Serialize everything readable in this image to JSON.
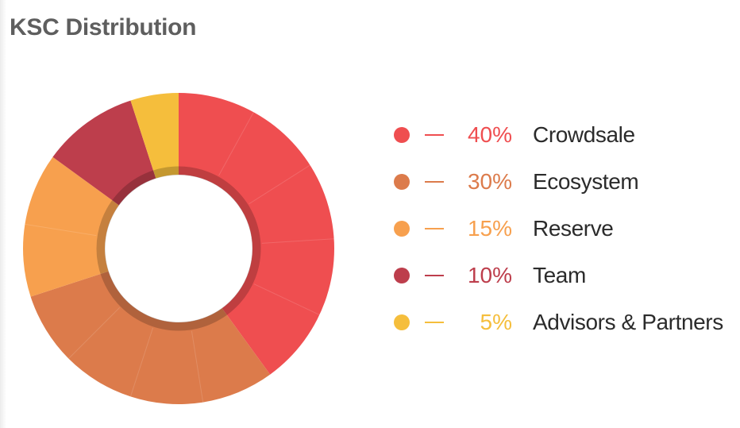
{
  "title": "KSC Distribution",
  "chart_data": {
    "type": "pie",
    "variant": "donut",
    "title": "KSC Distribution",
    "slices": [
      {
        "label": "Crowdsale",
        "value": 40,
        "value_label": "40%",
        "color": "#ef4e50"
      },
      {
        "label": "Ecosystem",
        "value": 30,
        "value_label": "30%",
        "color": "#dc7b4b"
      },
      {
        "label": "Reserve",
        "value": 15,
        "value_label": "15%",
        "color": "#f7a04e"
      },
      {
        "label": "Team",
        "value": 10,
        "value_label": "10%",
        "color": "#bd3e4c"
      },
      {
        "label": "Advisors & Partners",
        "value": 5,
        "value_label": "5%",
        "color": "#f5be3c"
      }
    ],
    "legend_position": "right",
    "start_angle_deg": 0,
    "direction": "clockwise"
  }
}
